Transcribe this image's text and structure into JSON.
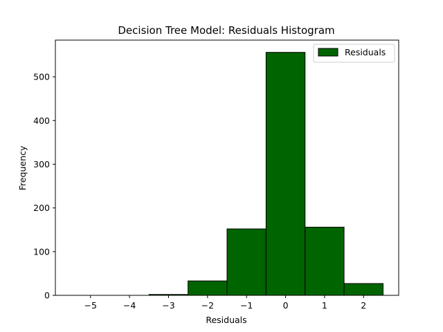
{
  "chart_data": {
    "type": "bar",
    "title": "Decision Tree Model: Residuals Histogram",
    "xlabel": "Residuals",
    "ylabel": "Frequency",
    "bins": [
      {
        "start": -5.5,
        "end": -4.5,
        "count": 0
      },
      {
        "start": -4.5,
        "end": -3.5,
        "count": 0
      },
      {
        "start": -3.5,
        "end": -2.5,
        "count": 2
      },
      {
        "start": -2.5,
        "end": -1.5,
        "count": 33
      },
      {
        "start": -1.5,
        "end": -0.5,
        "count": 152
      },
      {
        "start": -0.5,
        "end": 0.5,
        "count": 556
      },
      {
        "start": 0.5,
        "end": 1.5,
        "count": 156
      },
      {
        "start": 1.5,
        "end": 2.5,
        "count": 27
      }
    ],
    "xlim": [
      -5.9,
      2.9
    ],
    "ylim": [
      0,
      584
    ],
    "xticks": [
      -5,
      -4,
      -3,
      -2,
      -1,
      0,
      1,
      2
    ],
    "xtick_labels": [
      "−5",
      "−4",
      "−3",
      "−2",
      "−1",
      "0",
      "1",
      "2"
    ],
    "yticks": [
      0,
      100,
      200,
      300,
      400,
      500
    ],
    "ytick_labels": [
      "0",
      "100",
      "200",
      "300",
      "400",
      "500"
    ],
    "series": [
      {
        "name": "Residuals",
        "color": "#006400",
        "edge_color": "#000000"
      }
    ],
    "legend_position": "top-right",
    "grid": false
  }
}
